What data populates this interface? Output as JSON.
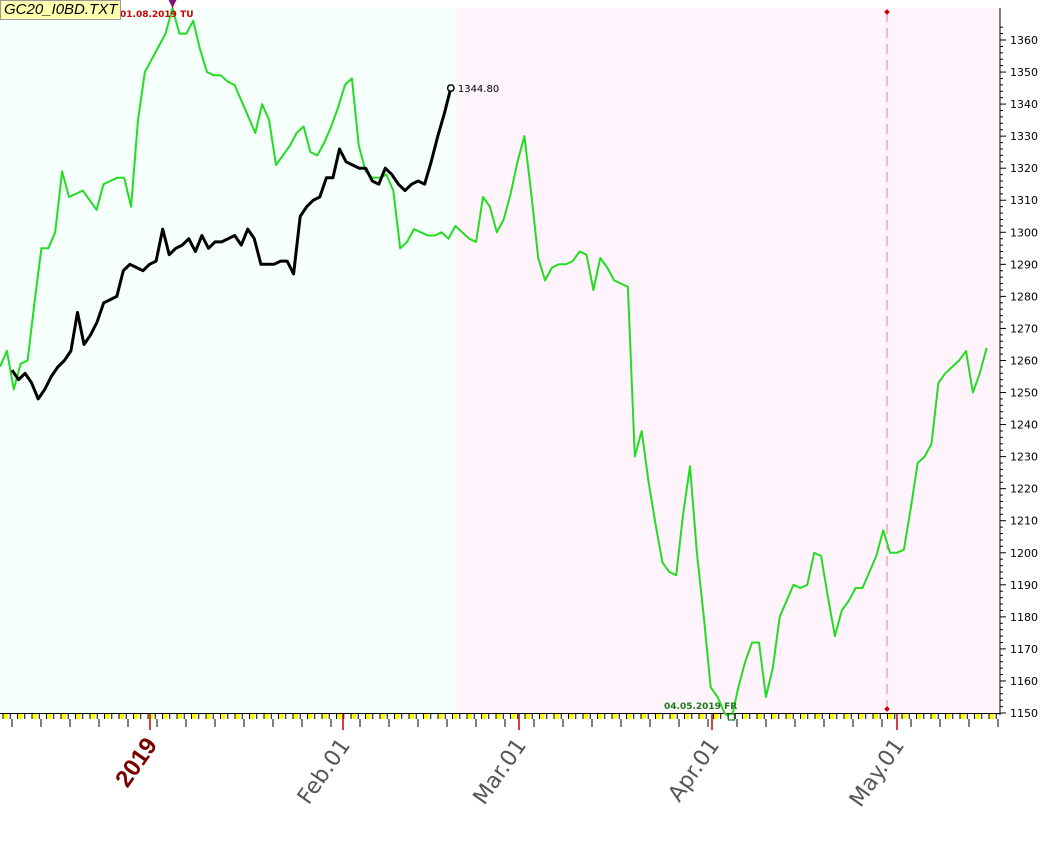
{
  "title": "GC20_I0BD.TXT",
  "chart_data": {
    "type": "line",
    "y_axis": {
      "min": 1150,
      "max": 1365,
      "ticks": [
        1150,
        1160,
        1170,
        1180,
        1190,
        1200,
        1210,
        1220,
        1230,
        1240,
        1250,
        1260,
        1270,
        1280,
        1290,
        1300,
        1310,
        1320,
        1330,
        1340,
        1350,
        1360
      ],
      "position": "right"
    },
    "x_axis": {
      "labels": [
        "2019",
        "Feb.01",
        "Mar.01",
        "Apr.01",
        "May.01"
      ]
    },
    "grid": false,
    "background_regions": [
      {
        "from_label": "start",
        "to_label": "mid-Feb",
        "color": "#f5fffc"
      },
      {
        "from_label": "mid-Feb",
        "to_label": "end",
        "color": "#fff3fc"
      }
    ],
    "series": [
      {
        "color": "#22dd22",
        "values": [
          1258,
          1263,
          1251,
          1259,
          1260,
          1278,
          1295,
          1295,
          1300,
          1319,
          1311,
          1312,
          1313,
          1310,
          1307,
          1315,
          1316,
          1317,
          1317,
          1308,
          1335,
          1350,
          1354,
          1358,
          1362,
          1370,
          1362,
          1362,
          1366,
          1357,
          1350,
          1349,
          1349,
          1347,
          1346,
          1341,
          1336,
          1331,
          1340,
          1335,
          1321,
          1324,
          1327,
          1331,
          1333,
          1325,
          1324,
          1328,
          1333,
          1339,
          1346,
          1348,
          1327,
          1319,
          1317,
          1317,
          1318,
          1313,
          1295,
          1297,
          1301,
          1300,
          1299,
          1299,
          1300,
          1298,
          1302,
          1300,
          1298,
          1297,
          1311,
          1308,
          1300,
          1304,
          1312,
          1322,
          1330,
          1312,
          1292,
          1285,
          1289,
          1290,
          1290,
          1291,
          1294,
          1293,
          1282,
          1292,
          1289,
          1285,
          1284,
          1283,
          1230,
          1238,
          1222,
          1209,
          1197,
          1194,
          1193,
          1212,
          1227,
          1200,
          1180,
          1158,
          1155,
          1150,
          1148,
          1158,
          1166,
          1172,
          1172,
          1155,
          1164,
          1180,
          1185,
          1190,
          1189,
          1190,
          1200,
          1199,
          1186,
          1174,
          1182,
          1185,
          1189,
          1189,
          1194,
          1199,
          1207,
          1200,
          1200,
          1201,
          1214,
          1228,
          1230,
          1234,
          1253,
          1256,
          1258,
          1260,
          1263,
          1250,
          1256,
          1264
        ]
      },
      {
        "color": "#000000",
        "values": [
          1257,
          1254,
          1256,
          1253,
          1248,
          1251,
          1255,
          1258,
          1260,
          1263,
          1275,
          1265,
          1268,
          1272,
          1278,
          1279,
          1280,
          1288,
          1290,
          1289,
          1288,
          1290,
          1291,
          1301,
          1293,
          1295,
          1296,
          1298,
          1294,
          1299,
          1295,
          1297,
          1297,
          1298,
          1299,
          1296,
          1301,
          1298,
          1290,
          1290,
          1290,
          1291,
          1291,
          1287,
          1305,
          1308,
          1310,
          1311,
          1317,
          1317,
          1326,
          1322,
          1321,
          1320,
          1320,
          1316,
          1315,
          1320,
          1318,
          1315,
          1313,
          1315,
          1316,
          1315,
          1322,
          1330,
          1337,
          1345
        ]
      }
    ],
    "annotations": {
      "high_label": "01.08.2019 TU",
      "low_label": "04.05.2019 FR",
      "last_value_label": "1344.80"
    }
  }
}
